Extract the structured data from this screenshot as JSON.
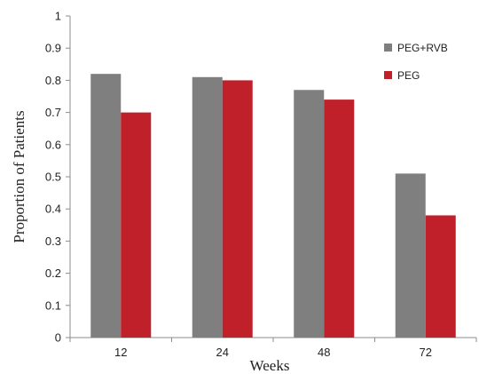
{
  "chart_data": {
    "type": "bar",
    "categories": [
      "12",
      "24",
      "48",
      "72"
    ],
    "series": [
      {
        "name": "PEG+RVB",
        "values": [
          0.82,
          0.81,
          0.77,
          0.51
        ],
        "color": "#7f7f7f"
      },
      {
        "name": "PEG",
        "values": [
          0.7,
          0.8,
          0.74,
          0.38
        ],
        "color": "#c0202a"
      }
    ],
    "xlabel": "Weeks",
    "ylabel": "Proportion of Patients",
    "ylim": [
      0,
      1
    ],
    "yticks": [
      "0",
      "0.1",
      "0.2",
      "0.3",
      "0.4",
      "0.5",
      "0.6",
      "0.7",
      "0.8",
      "0.9",
      "1"
    ],
    "grid": false,
    "legend_position": "top-right"
  }
}
